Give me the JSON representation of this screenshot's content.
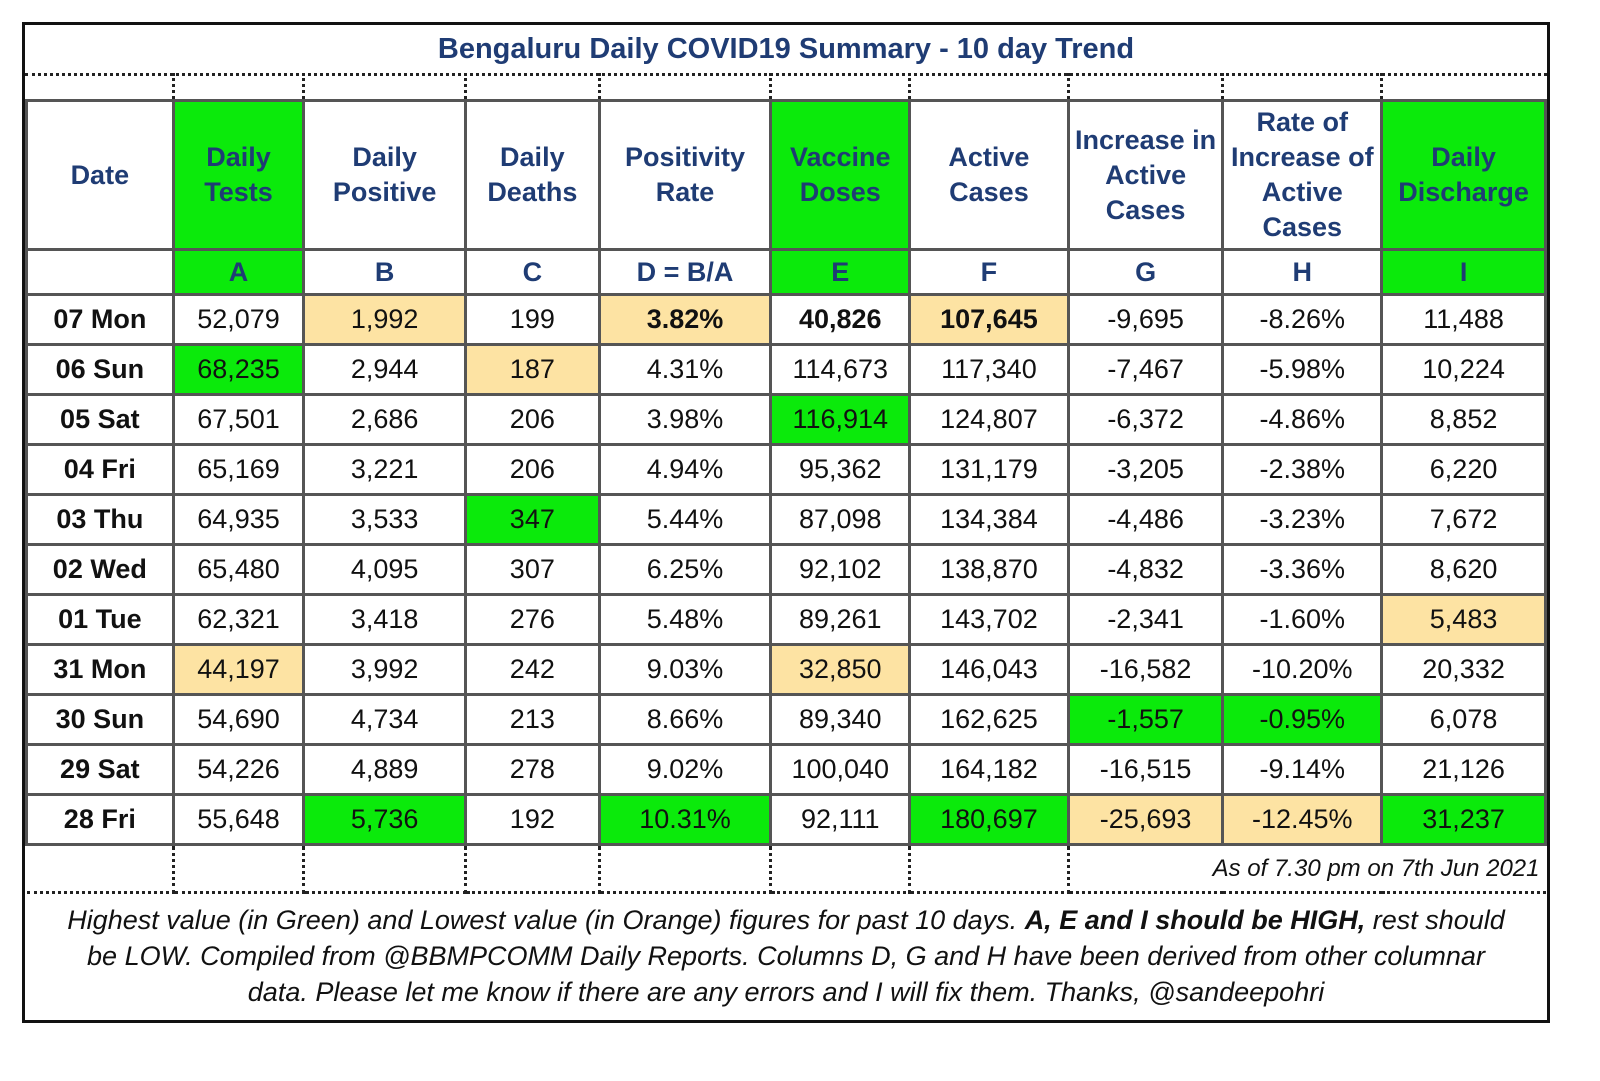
{
  "title": "Bengaluru Daily COVID19 Summary - 10 day Trend",
  "colors": {
    "highest": "#0bea0b",
    "lowest": "#fde3a3",
    "header_text": "#1f3c74"
  },
  "columns": [
    {
      "label": "Date",
      "letter": "",
      "highlight": ""
    },
    {
      "label": "Daily Tests",
      "letter": "A",
      "highlight": "green"
    },
    {
      "label": "Daily Positive",
      "letter": "B",
      "highlight": ""
    },
    {
      "label": "Daily Deaths",
      "letter": "C",
      "highlight": ""
    },
    {
      "label": "Positivity Rate",
      "letter": "D = B/A",
      "highlight": ""
    },
    {
      "label": "Vaccine Doses",
      "letter": "E",
      "highlight": "green"
    },
    {
      "label": "Active Cases",
      "letter": "F",
      "highlight": ""
    },
    {
      "label": "Increase in Active Cases",
      "letter": "G",
      "highlight": ""
    },
    {
      "label": "Rate of Increase of Active Cases",
      "letter": "H",
      "highlight": ""
    },
    {
      "label": "Daily Discharge",
      "letter": "I",
      "highlight": "green"
    }
  ],
  "rows": [
    {
      "cells": [
        "07 Mon",
        "52,079",
        "1,992",
        "199",
        "3.82%",
        "40,826",
        "107,645",
        "-9,695",
        "-8.26%",
        "11,488"
      ],
      "marks": [
        "",
        "",
        "orange",
        "",
        "orange",
        "",
        "orange",
        "",
        "",
        ""
      ],
      "bold": [
        4,
        5,
        6
      ]
    },
    {
      "cells": [
        "06 Sun",
        "68,235",
        "2,944",
        "187",
        "4.31%",
        "114,673",
        "117,340",
        "-7,467",
        "-5.98%",
        "10,224"
      ],
      "marks": [
        "",
        "green",
        "",
        "orange",
        "",
        "",
        "",
        "",
        "",
        ""
      ],
      "bold": []
    },
    {
      "cells": [
        "05 Sat",
        "67,501",
        "2,686",
        "206",
        "3.98%",
        "116,914",
        "124,807",
        "-6,372",
        "-4.86%",
        "8,852"
      ],
      "marks": [
        "",
        "",
        "",
        "",
        "",
        "green",
        "",
        "",
        "",
        ""
      ],
      "bold": []
    },
    {
      "cells": [
        "04 Fri",
        "65,169",
        "3,221",
        "206",
        "4.94%",
        "95,362",
        "131,179",
        "-3,205",
        "-2.38%",
        "6,220"
      ],
      "marks": [
        "",
        "",
        "",
        "",
        "",
        "",
        "",
        "",
        "",
        ""
      ],
      "bold": []
    },
    {
      "cells": [
        "03 Thu",
        "64,935",
        "3,533",
        "347",
        "5.44%",
        "87,098",
        "134,384",
        "-4,486",
        "-3.23%",
        "7,672"
      ],
      "marks": [
        "",
        "",
        "",
        "green",
        "",
        "",
        "",
        "",
        "",
        ""
      ],
      "bold": []
    },
    {
      "cells": [
        "02 Wed",
        "65,480",
        "4,095",
        "307",
        "6.25%",
        "92,102",
        "138,870",
        "-4,832",
        "-3.36%",
        "8,620"
      ],
      "marks": [
        "",
        "",
        "",
        "",
        "",
        "",
        "",
        "",
        "",
        ""
      ],
      "bold": []
    },
    {
      "cells": [
        "01 Tue",
        "62,321",
        "3,418",
        "276",
        "5.48%",
        "89,261",
        "143,702",
        "-2,341",
        "-1.60%",
        "5,483"
      ],
      "marks": [
        "",
        "",
        "",
        "",
        "",
        "",
        "",
        "",
        "",
        "orange"
      ],
      "bold": []
    },
    {
      "cells": [
        "31 Mon",
        "44,197",
        "3,992",
        "242",
        "9.03%",
        "32,850",
        "146,043",
        "-16,582",
        "-10.20%",
        "20,332"
      ],
      "marks": [
        "",
        "orange",
        "",
        "",
        "",
        "orange",
        "",
        "",
        "",
        ""
      ],
      "bold": []
    },
    {
      "cells": [
        "30 Sun",
        "54,690",
        "4,734",
        "213",
        "8.66%",
        "89,340",
        "162,625",
        "-1,557",
        "-0.95%",
        "6,078"
      ],
      "marks": [
        "",
        "",
        "",
        "",
        "",
        "",
        "",
        "green",
        "green",
        ""
      ],
      "bold": []
    },
    {
      "cells": [
        "29 Sat",
        "54,226",
        "4,889",
        "278",
        "9.02%",
        "100,040",
        "164,182",
        "-16,515",
        "-9.14%",
        "21,126"
      ],
      "marks": [
        "",
        "",
        "",
        "",
        "",
        "",
        "",
        "",
        "",
        ""
      ],
      "bold": []
    },
    {
      "cells": [
        "28 Fri",
        "55,648",
        "5,736",
        "192",
        "10.31%",
        "92,111",
        "180,697",
        "-25,693",
        "-12.45%",
        "31,237"
      ],
      "marks": [
        "",
        "",
        "green",
        "",
        "green",
        "",
        "green",
        "orange",
        "orange",
        "green"
      ],
      "bold": []
    }
  ],
  "as_of": "As of 7.30 pm on 7th Jun 2021",
  "note": {
    "part1": "Highest value (in Green) and Lowest value (in Orange) figures for past 10 days. ",
    "bold": "A, E and I should be HIGH,",
    "part2": " rest should be LOW. Compiled from @BBMPCOMM Daily Reports. Columns D, G and H have been derived from other columnar data. Please let me know if there are any errors and I will fix them. Thanks, @sandeepohri"
  }
}
